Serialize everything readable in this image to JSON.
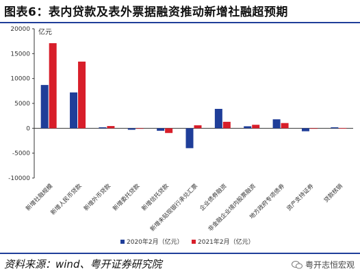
{
  "header": {
    "title": "图表6：表内贷款及表外票据融资推动新增社融超预期"
  },
  "footer": {
    "source": "资料来源：wind、粤开证券研究院",
    "watermark": "粤开志恒宏观"
  },
  "colors": {
    "series_2020": "#1f3e99",
    "series_2021": "#d81e2a",
    "rule": "#1f3e99"
  },
  "chart_data": {
    "type": "bar",
    "unit_label": "亿元",
    "categories": [
      "新增社融规模",
      "新增人民币贷款",
      "新增外币贷款",
      "新增委托贷款",
      "新增信托贷款",
      "新增未贴现银行承兑汇票",
      "企业债券融资",
      "非金融企业境内股票融资",
      "地方政府专项债券",
      "资产支持证券",
      "贷款核销"
    ],
    "series": [
      {
        "name": "2020年2月（亿元）",
        "values": [
          8700,
          7200,
          200,
          -300,
          -500,
          -4000,
          3900,
          400,
          1800,
          -600,
          200
        ]
      },
      {
        "name": "2021年2月（亿元）",
        "values": [
          17100,
          13400,
          450,
          -80,
          -950,
          600,
          1300,
          700,
          1050,
          -20,
          50
        ]
      }
    ],
    "ylim": [
      -10000,
      20000
    ],
    "yticks": [
      "-10000",
      "-5000",
      "0",
      "5000",
      "10000",
      "15000",
      "20000"
    ],
    "grid": false,
    "legend": "bottom"
  }
}
